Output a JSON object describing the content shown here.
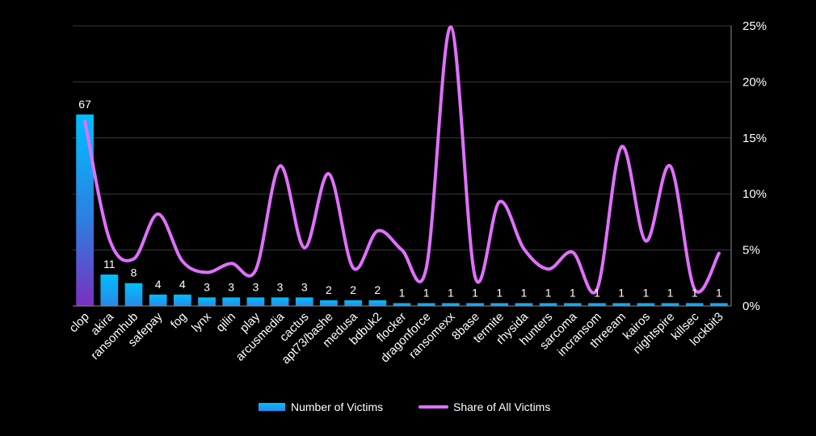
{
  "chart_data": {
    "type": "bar",
    "categories": [
      "clop",
      "akira",
      "ransomhub",
      "safepay",
      "fog",
      "lynx",
      "qilin",
      "play",
      "arcusmedia",
      "cactus",
      "apt73/bashe",
      "medusa",
      "bdbuk2",
      "flocker",
      "dragonforce",
      "ransomexx",
      "8base",
      "termite",
      "rhysida",
      "hunters",
      "sarcoma",
      "incransom",
      "threeam",
      "kairos",
      "nightspire",
      "killsec",
      "lockbit3"
    ],
    "series": [
      {
        "name": "Number of Victims",
        "type": "bar",
        "axis": "left",
        "values": [
          67,
          11,
          8,
          4,
          4,
          3,
          3,
          3,
          3,
          3,
          2,
          2,
          2,
          1,
          1,
          1,
          1,
          1,
          1,
          1,
          1,
          1,
          1,
          1,
          1,
          1,
          1
        ]
      },
      {
        "name": "Share of All Victims",
        "type": "line",
        "axis": "right",
        "values": [
          16.5,
          6,
          4.2,
          8.2,
          4,
          3,
          3.8,
          3.2,
          12.5,
          5.2,
          11.8,
          3.4,
          6.7,
          5,
          3.4,
          24.9,
          2.6,
          9.3,
          5.1,
          3.3,
          4.8,
          1.5,
          14.2,
          5.8,
          12.5,
          1.5,
          4.7
        ]
      }
    ],
    "y2_ticks": [
      "0%",
      "5%",
      "10%",
      "15%",
      "20%",
      "25%"
    ],
    "y2lim": [
      0,
      25
    ],
    "ylim": [
      0,
      98
    ],
    "grid": true,
    "legend": "bottom-center",
    "colors": {
      "bar_top": "#00bfff",
      "bar_bottom": "#7b2fbf",
      "line": "#e070ff",
      "grid": "#3a3a3a",
      "background": "#000000"
    }
  }
}
